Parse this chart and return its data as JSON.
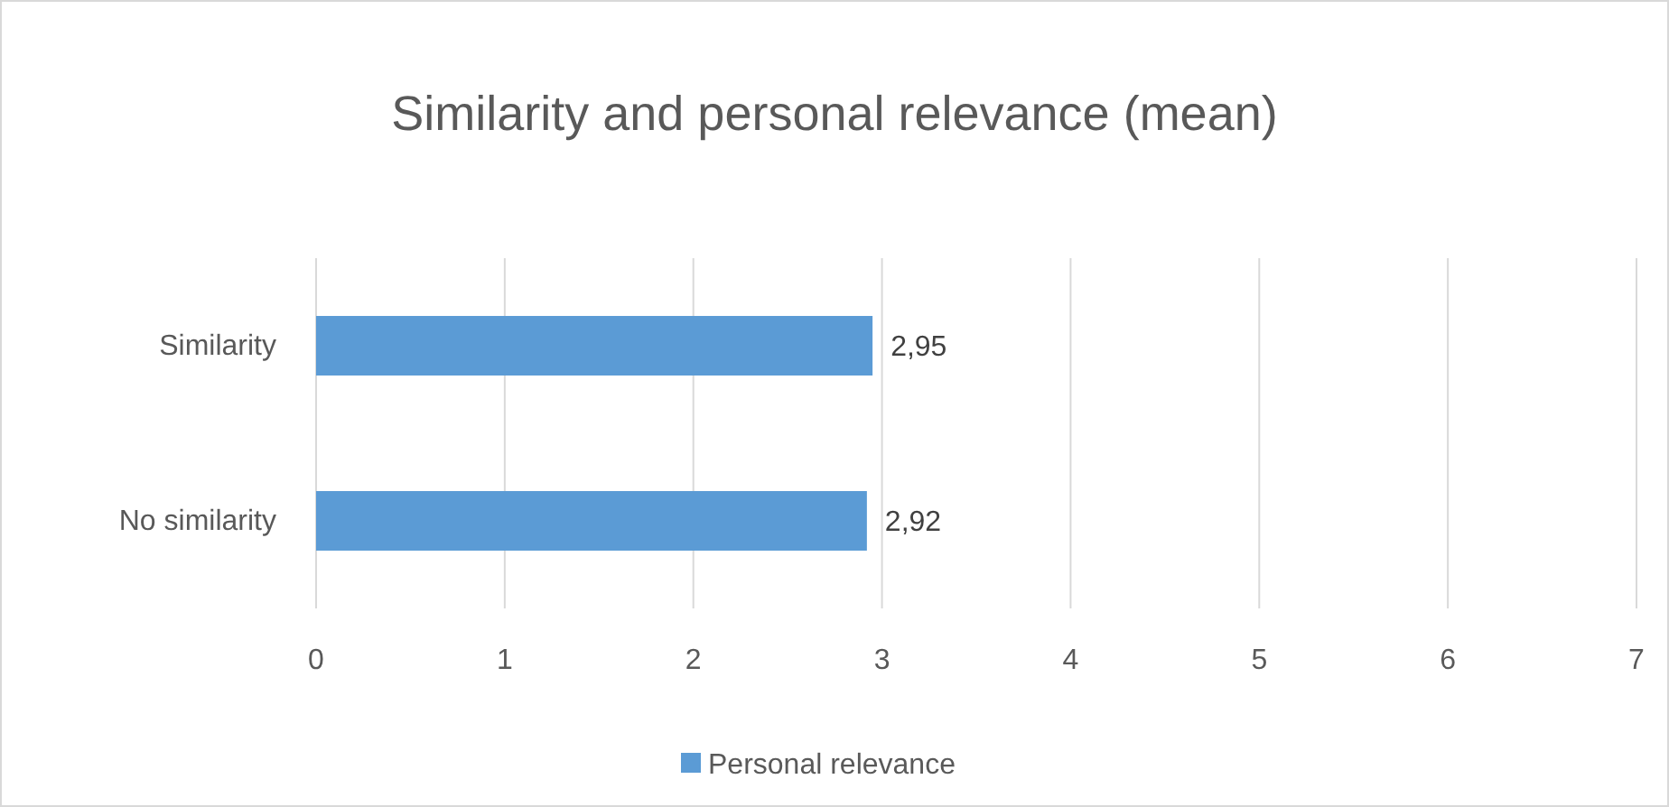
{
  "chart_data": {
    "type": "bar",
    "orientation": "horizontal",
    "title": "Similarity and personal relevance (mean)",
    "categories": [
      "Similarity",
      "No similarity"
    ],
    "series": [
      {
        "name": "Personal relevance",
        "color": "#5b9bd5",
        "values": [
          2.95,
          2.92
        ],
        "value_labels": [
          "2,95",
          "2,92"
        ]
      }
    ],
    "xlim": [
      0,
      7
    ],
    "xticks": [
      0,
      1,
      2,
      3,
      4,
      5,
      6,
      7
    ],
    "grid": "x",
    "legend": "bottom"
  }
}
